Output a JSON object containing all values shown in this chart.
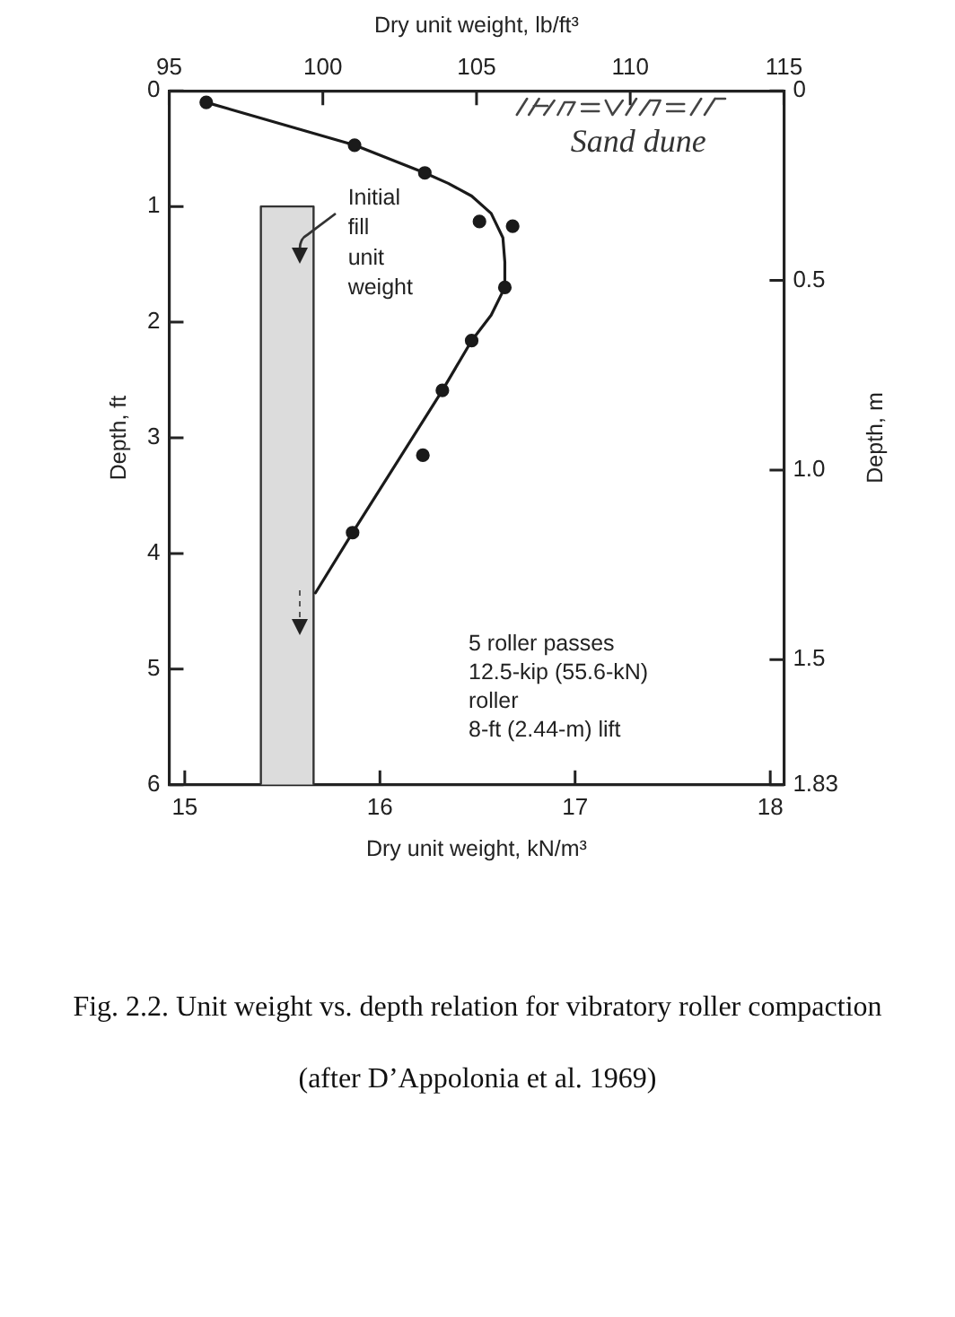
{
  "chart_data": {
    "type": "scatter",
    "xlabel": "Dry unit weight, kN/m³",
    "x2label": "Dry unit weight, lb/ft³",
    "ylabel": "Depth, ft",
    "y2label": "Depth, m",
    "xlim": [
      14.92,
      18.07
    ],
    "xticks": [
      15,
      16,
      17,
      18
    ],
    "x2lim": [
      95,
      115
    ],
    "x2ticks": [
      95,
      100,
      105,
      110,
      115
    ],
    "ylim": [
      6,
      0
    ],
    "yticks": [
      0,
      1,
      2,
      3,
      4,
      5,
      6
    ],
    "y2lim": [
      1.83,
      0
    ],
    "y2ticks": [
      0,
      0.5,
      {
        "value": 1,
        "label": "1.0"
      },
      1.5,
      1.83
    ],
    "series": [
      {
        "color": "#1a1a1a",
        "marker": "circle",
        "x": [
          15.11,
          15.87,
          16.23,
          16.51,
          16.68,
          16.64,
          16.47,
          16.32,
          16.22,
          15.86
        ],
        "values": [
          0.1,
          0.47,
          0.71,
          1.13,
          1.17,
          1.7,
          2.16,
          2.59,
          3.15,
          3.82
        ]
      },
      {
        "type": "line",
        "color": "#1a1a1a",
        "marker": "none",
        "x": [
          15.11,
          15.87,
          16.23,
          16.35,
          16.47,
          16.57,
          16.63,
          16.64,
          16.64,
          16.57,
          16.47,
          16.32,
          15.86,
          15.67
        ],
        "values": [
          0.1,
          0.47,
          0.71,
          0.8,
          0.91,
          1.06,
          1.27,
          1.48,
          1.7,
          1.94,
          2.16,
          2.59,
          3.82,
          4.34
        ]
      },
      {
        "type": "area",
        "color": "#dcdcdc",
        "x": [
          15.39,
          15.39,
          15.66,
          15.66
        ],
        "values": [
          6,
          1,
          1,
          6
        ]
      }
    ],
    "annotations": [
      "Initial\nfill\nunit\nweight",
      "Sand dune",
      "5 roller passes\n12.5-kip (55.6-kN)\nroller\n8-ft (2.44-m) lift",
      "Fig. 2.2. Unit weight vs. depth relation for vibratory roller compaction",
      "(after D’Appolonia et al. 1969)"
    ]
  }
}
